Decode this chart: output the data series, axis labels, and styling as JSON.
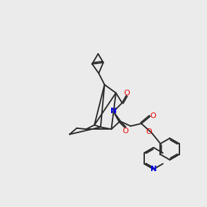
{
  "bg_color": "#ebebeb",
  "bond_color": "#2a2a2a",
  "N_color": "#0000ee",
  "O_color": "#ee0000",
  "lw": 1.4,
  "xlim": [
    0,
    10
  ],
  "ylim": [
    0,
    10
  ]
}
